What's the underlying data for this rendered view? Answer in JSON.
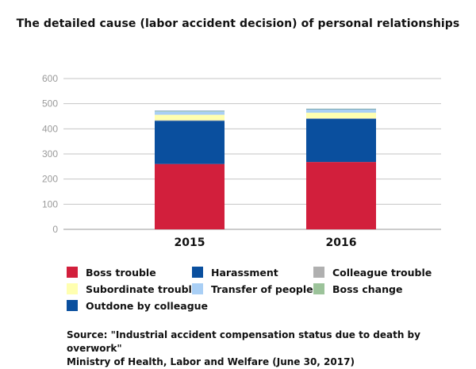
{
  "title": "The detailed cause (labor accident decision) of personal relationships",
  "chart_data": {
    "type": "bar",
    "stacked": true,
    "categories": [
      "2015",
      "2016"
    ],
    "ylim": [
      0,
      600
    ],
    "yticks": [
      0,
      100,
      200,
      300,
      400,
      500,
      600
    ],
    "grid": true,
    "legend_position": "bottom",
    "series": [
      {
        "name": "Boss trouble",
        "color": "#d21f3c",
        "values": [
          260,
          268
        ]
      },
      {
        "name": "Harassment",
        "color": "#0a4f9e",
        "values": [
          172,
          172
        ]
      },
      {
        "name": "Colleague trouble",
        "color": "#b0b0b0",
        "values": [
          2,
          2
        ]
      },
      {
        "name": "Subordinate trouble",
        "color": "#ffffb0",
        "values": [
          22,
          22
        ]
      },
      {
        "name": "Transfer of people",
        "color": "#a9cff5",
        "values": [
          13,
          13
        ]
      },
      {
        "name": "Boss change",
        "color": "#9cc39a",
        "values": [
          2,
          2
        ]
      },
      {
        "name": "Outdone by colleague",
        "color": "#0a4f9e",
        "values": [
          1,
          1
        ]
      }
    ]
  },
  "source_line1": "Source: \"Industrial accident compensation status due to death by overwork\"",
  "source_line2": "Ministry of Health, Labor and Welfare (June 30, 2017)"
}
